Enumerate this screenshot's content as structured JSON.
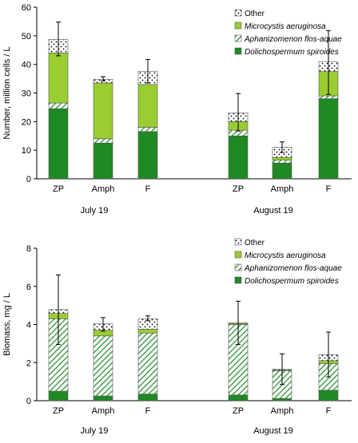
{
  "legend": [
    {
      "label": "Other",
      "italic": false
    },
    {
      "label": "Microcystis aeruginosa",
      "italic": true
    },
    {
      "label": "Aphanizomenon flos-aquae",
      "italic": true
    },
    {
      "label": "Dolichospermum spiroides",
      "italic": true
    }
  ],
  "colors": {
    "dolichospermum": "#1f8a24",
    "aphanizomenon": "#2f9e3a",
    "microcystis": "#9acd32",
    "other": "#ffffff",
    "edge": "#555555"
  },
  "chart_data": [
    {
      "type": "bar",
      "stacked": true,
      "ylabel": "Number, million cells / L",
      "ylim": [
        0,
        60
      ],
      "yticks": [
        0,
        10,
        20,
        30,
        40,
        50,
        60
      ],
      "categories": [
        "ZP",
        "Amph",
        "F",
        "ZP",
        "Amph",
        "F"
      ],
      "groups": [
        {
          "label": "July 19",
          "categories": [
            "ZP",
            "Amph",
            "F"
          ]
        },
        {
          "label": "August 19",
          "categories": [
            "ZP",
            "Amph",
            "F"
          ]
        }
      ],
      "series": [
        {
          "name": "Dolichospermum spiroides",
          "values": [
            24.5,
            12.5,
            16.5,
            15.0,
            5.5,
            28.0
          ]
        },
        {
          "name": "Aphanizomenon flos-aquae",
          "values": [
            2.0,
            1.5,
            1.5,
            2.0,
            1.0,
            1.0
          ]
        },
        {
          "name": "Microcystis aeruginosa",
          "values": [
            17.5,
            19.5,
            15.0,
            3.0,
            1.0,
            8.5
          ]
        },
        {
          "name": "Other",
          "values": [
            4.7,
            1.3,
            4.6,
            3.0,
            3.5,
            3.5
          ]
        }
      ],
      "error_upper": [
        54.8,
        35.7,
        41.7,
        29.8,
        12.9,
        51.8
      ],
      "error_lower": [
        43.0,
        34.2,
        33.5,
        16.7,
        9.2,
        29.5
      ]
    },
    {
      "type": "bar",
      "stacked": true,
      "ylabel": "Biomass, mg / L",
      "ylim": [
        0,
        8
      ],
      "yticks": [
        0,
        2,
        4,
        6,
        8
      ],
      "categories": [
        "ZP",
        "Amph",
        "F",
        "ZP",
        "Amph",
        "F"
      ],
      "groups": [
        {
          "label": "July 19",
          "categories": [
            "ZP",
            "Amph",
            "F"
          ]
        },
        {
          "label": "August 19",
          "categories": [
            "ZP",
            "Amph",
            "F"
          ]
        }
      ],
      "series": [
        {
          "name": "Dolichospermum spiroides",
          "values": [
            0.5,
            0.25,
            0.35,
            0.3,
            0.12,
            0.55
          ]
        },
        {
          "name": "Aphanizomenon flos-aquae",
          "values": [
            3.8,
            3.15,
            3.2,
            3.7,
            1.45,
            1.4
          ]
        },
        {
          "name": "Microcystis aeruginosa",
          "values": [
            0.28,
            0.3,
            0.2,
            0.05,
            0.03,
            0.15
          ]
        },
        {
          "name": "Other",
          "values": [
            0.2,
            0.33,
            0.55,
            0.05,
            0.05,
            0.32
          ]
        }
      ],
      "error_upper": [
        6.6,
        4.36,
        4.45,
        5.22,
        2.46,
        3.6
      ],
      "error_lower": [
        2.95,
        3.65,
        4.2,
        2.95,
        0.85,
        1.25
      ]
    }
  ]
}
